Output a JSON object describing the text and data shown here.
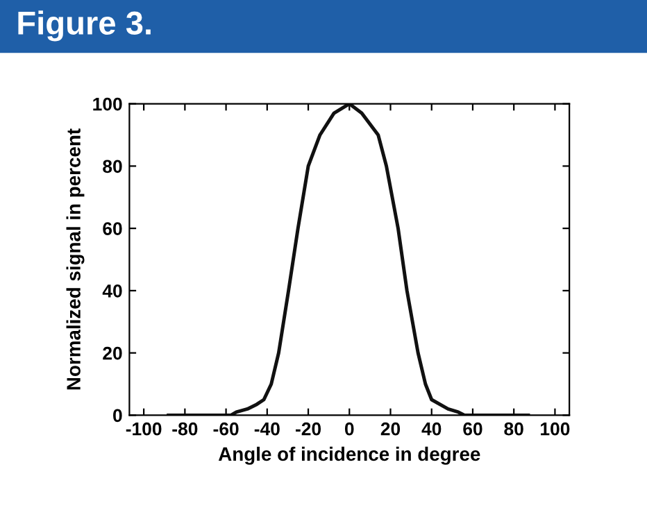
{
  "chart_data": {
    "type": "line",
    "title": "Figure 3.",
    "xlabel": "Angle of incidence in degree",
    "ylabel": "Normalized signal in percent",
    "x": [
      -88,
      -57.6,
      -55,
      -49.6,
      -45,
      -41.6,
      -38,
      -34.4,
      -29.6,
      -25,
      -20,
      -14.3,
      -7.5,
      0,
      6,
      14,
      18,
      23.7,
      28,
      33.4,
      37,
      40,
      48,
      53,
      56,
      87
    ],
    "series": [
      {
        "color": "#111111",
        "values": [
          0,
          0,
          1,
          2,
          3.5,
          5,
          10,
          20,
          40,
          60,
          80,
          90,
          97,
          100,
          97,
          90,
          80,
          60,
          40,
          20,
          10,
          5,
          2,
          1,
          0,
          0
        ]
      }
    ],
    "xlim": [
      -107,
      107
    ],
    "ylim": [
      0,
      100
    ],
    "xticks": [
      -100,
      -80,
      -60,
      -40,
      -20,
      0,
      20,
      40,
      60,
      80,
      100
    ],
    "yticks": [
      0,
      20,
      40,
      60,
      80,
      100
    ],
    "marker": "none",
    "line_style": "solid"
  }
}
